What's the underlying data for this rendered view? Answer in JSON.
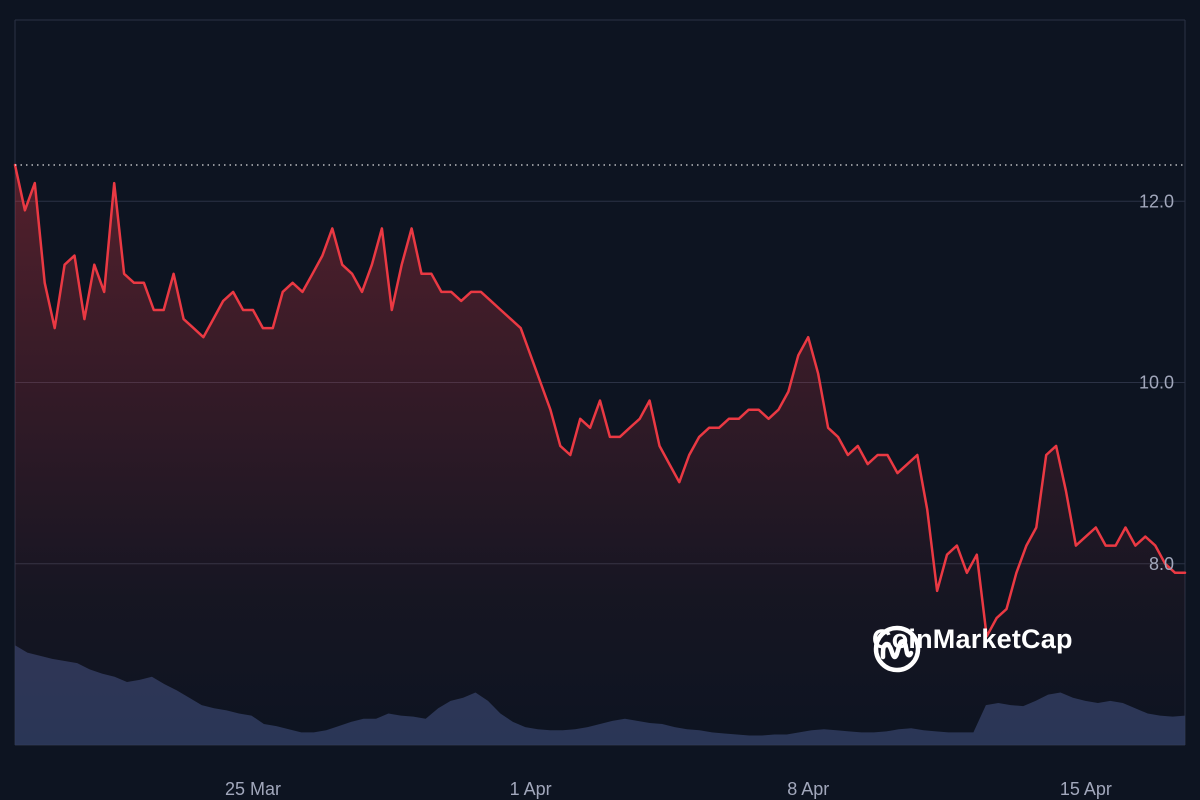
{
  "brand": {
    "name": "CoinMarketCap",
    "logo_icon": "coinmarketcap-logo-icon"
  },
  "colors": {
    "background": "#0d1421",
    "price_line": "#ea3943",
    "volume_fill": "#2e3a5c",
    "gridline": "#2b3245",
    "reference_line": "#ffffff"
  },
  "chart_data": {
    "type": "line",
    "price_series": {
      "x": [
        "2024-03-19 00:00",
        "2024-03-19 06:00",
        "2024-03-19 12:00",
        "2024-03-19 18:00",
        "2024-03-20 00:00",
        "2024-03-20 06:00",
        "2024-03-20 12:00",
        "2024-03-20 18:00",
        "2024-03-21 00:00",
        "2024-03-21 06:00",
        "2024-03-21 12:00",
        "2024-03-21 18:00",
        "2024-03-22 00:00",
        "2024-03-22 06:00",
        "2024-03-22 12:00",
        "2024-03-22 18:00",
        "2024-03-23 00:00",
        "2024-03-23 06:00",
        "2024-03-23 12:00",
        "2024-03-23 18:00",
        "2024-03-24 00:00",
        "2024-03-24 06:00",
        "2024-03-24 12:00",
        "2024-03-24 18:00",
        "2024-03-25 00:00",
        "2024-03-25 06:00",
        "2024-03-25 12:00",
        "2024-03-25 18:00",
        "2024-03-26 00:00",
        "2024-03-26 06:00",
        "2024-03-26 12:00",
        "2024-03-26 18:00",
        "2024-03-27 00:00",
        "2024-03-27 06:00",
        "2024-03-27 12:00",
        "2024-03-27 18:00",
        "2024-03-28 00:00",
        "2024-03-28 06:00",
        "2024-03-28 12:00",
        "2024-03-28 18:00",
        "2024-03-29 00:00",
        "2024-03-29 06:00",
        "2024-03-29 12:00",
        "2024-03-29 18:00",
        "2024-03-30 00:00",
        "2024-03-30 06:00",
        "2024-03-30 12:00",
        "2024-03-30 18:00",
        "2024-03-31 00:00",
        "2024-03-31 06:00",
        "2024-03-31 12:00",
        "2024-03-31 18:00",
        "2024-04-01 00:00",
        "2024-04-01 06:00",
        "2024-04-01 12:00",
        "2024-04-01 18:00",
        "2024-04-02 00:00",
        "2024-04-02 06:00",
        "2024-04-02 12:00",
        "2024-04-02 18:00",
        "2024-04-03 00:00",
        "2024-04-03 06:00",
        "2024-04-03 12:00",
        "2024-04-03 18:00",
        "2024-04-04 00:00",
        "2024-04-04 06:00",
        "2024-04-04 12:00",
        "2024-04-04 18:00",
        "2024-04-05 00:00",
        "2024-04-05 06:00",
        "2024-04-05 12:00",
        "2024-04-05 18:00",
        "2024-04-06 00:00",
        "2024-04-06 06:00",
        "2024-04-06 12:00",
        "2024-04-06 18:00",
        "2024-04-07 00:00",
        "2024-04-07 06:00",
        "2024-04-07 12:00",
        "2024-04-07 18:00",
        "2024-04-08 00:00",
        "2024-04-08 06:00",
        "2024-04-08 12:00",
        "2024-04-08 18:00",
        "2024-04-09 00:00",
        "2024-04-09 06:00",
        "2024-04-09 12:00",
        "2024-04-09 18:00",
        "2024-04-10 00:00",
        "2024-04-10 06:00",
        "2024-04-10 12:00",
        "2024-04-10 18:00",
        "2024-04-11 00:00",
        "2024-04-11 06:00",
        "2024-04-11 12:00",
        "2024-04-11 18:00",
        "2024-04-12 00:00",
        "2024-04-12 06:00",
        "2024-04-12 12:00",
        "2024-04-12 18:00",
        "2024-04-13 00:00",
        "2024-04-13 06:00",
        "2024-04-13 12:00",
        "2024-04-13 18:00",
        "2024-04-14 00:00",
        "2024-04-14 06:00",
        "2024-04-14 12:00",
        "2024-04-14 18:00",
        "2024-04-15 00:00",
        "2024-04-15 06:00",
        "2024-04-15 12:00",
        "2024-04-15 18:00",
        "2024-04-16 00:00",
        "2024-04-16 06:00",
        "2024-04-16 12:00",
        "2024-04-16 18:00",
        "2024-04-17 00:00",
        "2024-04-17 06:00",
        "2024-04-17 12:00"
      ],
      "y": [
        12.4,
        11.9,
        12.2,
        11.1,
        10.6,
        11.3,
        11.4,
        10.7,
        11.3,
        11.0,
        12.2,
        11.2,
        11.1,
        11.1,
        10.8,
        10.8,
        11.2,
        10.7,
        10.6,
        10.5,
        10.7,
        10.9,
        11.0,
        10.8,
        10.8,
        10.6,
        10.6,
        11.0,
        11.1,
        11.0,
        11.2,
        11.4,
        11.7,
        11.3,
        11.2,
        11.0,
        11.3,
        11.7,
        10.8,
        11.3,
        11.7,
        11.2,
        11.2,
        11.0,
        11.0,
        10.9,
        11.0,
        11.0,
        10.9,
        10.8,
        10.7,
        10.6,
        10.3,
        10.0,
        9.7,
        9.3,
        9.2,
        9.6,
        9.5,
        9.8,
        9.4,
        9.4,
        9.5,
        9.6,
        9.8,
        9.3,
        9.1,
        8.9,
        9.2,
        9.4,
        9.5,
        9.5,
        9.6,
        9.6,
        9.7,
        9.7,
        9.6,
        9.7,
        9.9,
        10.3,
        10.5,
        10.1,
        9.5,
        9.4,
        9.2,
        9.3,
        9.1,
        9.2,
        9.2,
        9.0,
        9.1,
        9.2,
        8.6,
        7.7,
        8.1,
        8.2,
        7.9,
        8.1,
        7.2,
        7.4,
        7.5,
        7.9,
        8.2,
        8.4,
        9.2,
        9.3,
        8.8,
        8.2,
        8.3,
        8.4,
        8.2,
        8.2,
        8.4,
        8.2,
        8.3,
        8.2,
        8.0,
        7.9,
        7.9
      ]
    },
    "volume_series": {
      "relative_values": [
        0.95,
        0.88,
        0.85,
        0.82,
        0.8,
        0.78,
        0.72,
        0.68,
        0.65,
        0.6,
        0.62,
        0.65,
        0.58,
        0.52,
        0.45,
        0.38,
        0.35,
        0.33,
        0.3,
        0.28,
        0.2,
        0.18,
        0.15,
        0.12,
        0.12,
        0.14,
        0.18,
        0.22,
        0.25,
        0.25,
        0.3,
        0.28,
        0.27,
        0.25,
        0.35,
        0.42,
        0.45,
        0.5,
        0.42,
        0.3,
        0.22,
        0.17,
        0.15,
        0.14,
        0.14,
        0.15,
        0.17,
        0.2,
        0.23,
        0.25,
        0.23,
        0.21,
        0.2,
        0.17,
        0.15,
        0.14,
        0.12,
        0.11,
        0.1,
        0.09,
        0.09,
        0.1,
        0.1,
        0.12,
        0.14,
        0.15,
        0.14,
        0.13,
        0.12,
        0.12,
        0.13,
        0.15,
        0.16,
        0.14,
        0.13,
        0.12,
        0.12,
        0.12,
        0.38,
        0.4,
        0.38,
        0.37,
        0.42,
        0.48,
        0.5,
        0.45,
        0.42,
        0.4,
        0.42,
        0.4,
        0.35,
        0.3,
        0.28,
        0.27,
        0.28
      ]
    },
    "y_axis": {
      "position": "right",
      "ticks": [
        "12.0",
        "10.0",
        "8.0"
      ],
      "tick_values": [
        12.0,
        10.0,
        8.0
      ],
      "ylim": [
        6.0,
        14.0
      ]
    },
    "x_axis": {
      "ticks": [
        "25 Mar",
        "1 Apr",
        "8 Apr",
        "15 Apr"
      ],
      "tick_values": [
        "2024-03-25 00:00",
        "2024-04-01 00:00",
        "2024-04-08 00:00",
        "2024-04-15 00:00"
      ],
      "xlim": [
        "2024-03-19 00:00",
        "2024-04-17 12:00"
      ]
    },
    "reference_line": {
      "value": 12.4,
      "style": "dotted"
    },
    "grid": true,
    "legend": "none"
  }
}
